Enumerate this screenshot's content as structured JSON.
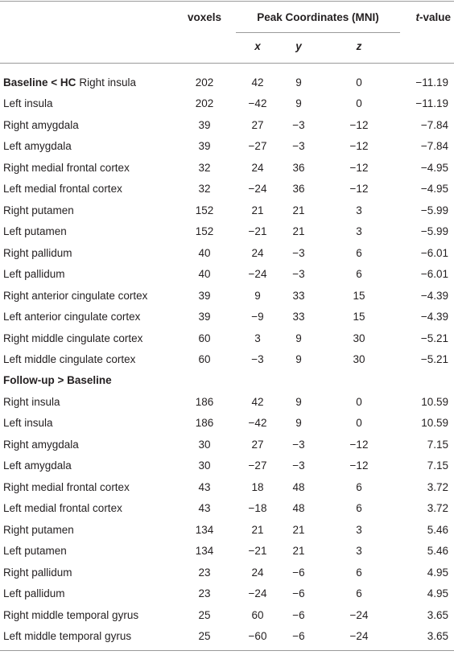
{
  "header": {
    "voxels": "voxels",
    "peak": "Peak Coordinates (MNI)",
    "x": "x",
    "y": "y",
    "z": "z",
    "t_value": {
      "italic": "t",
      "rest": "-value"
    }
  },
  "table": {
    "rows": [
      {
        "group": "Baseline < HC",
        "label": "Right insula",
        "cells": [
          "202",
          "42",
          "9",
          "0",
          "−11.19"
        ]
      },
      {
        "label": "Left insula",
        "cells": [
          "202",
          "−42",
          "9",
          "0",
          "−11.19"
        ]
      },
      {
        "label": "Right amygdala",
        "cells": [
          "39",
          "27",
          "−3",
          "−12",
          "−7.84"
        ]
      },
      {
        "label": "Left amygdala",
        "cells": [
          "39",
          "−27",
          "−3",
          "−12",
          "−7.84"
        ]
      },
      {
        "label": "Right medial frontal cortex",
        "cells": [
          "32",
          "24",
          "36",
          "−12",
          "−4.95"
        ]
      },
      {
        "label": "Left medial frontal cortex",
        "cells": [
          "32",
          "−24",
          "36",
          "−12",
          "−4.95"
        ]
      },
      {
        "label": "Right putamen",
        "cells": [
          "152",
          "21",
          "21",
          "3",
          "−5.99"
        ]
      },
      {
        "label": "Left putamen",
        "cells": [
          "152",
          "−21",
          "21",
          "3",
          "−5.99"
        ]
      },
      {
        "label": "Right pallidum",
        "cells": [
          "40",
          "24",
          "−3",
          "6",
          "−6.01"
        ]
      },
      {
        "label": "Left pallidum",
        "cells": [
          "40",
          "−24",
          "−3",
          "6",
          "−6.01"
        ]
      },
      {
        "label": "Right anterior cingulate cortex",
        "cells": [
          "39",
          "9",
          "33",
          "15",
          "−4.39"
        ]
      },
      {
        "label": "Left anterior cingulate cortex",
        "cells": [
          "39",
          "−9",
          "33",
          "15",
          "−4.39"
        ]
      },
      {
        "label": "Right middle cingulate cortex",
        "cells": [
          "60",
          "3",
          "9",
          "30",
          "−5.21"
        ]
      },
      {
        "label": "Left middle cingulate cortex",
        "cells": [
          "60",
          "−3",
          "9",
          "30",
          "−5.21"
        ]
      },
      {
        "group": "Follow-up > Baseline"
      },
      {
        "label": "Right insula",
        "cells": [
          "186",
          "42",
          "9",
          "0",
          "10.59"
        ]
      },
      {
        "label": "Left insula",
        "cells": [
          "186",
          "−42",
          "9",
          "0",
          "10.59"
        ]
      },
      {
        "label": "Right amygdala",
        "cells": [
          "30",
          "27",
          "−3",
          "−12",
          "7.15"
        ]
      },
      {
        "label": "Left amygdala",
        "cells": [
          "30",
          "−27",
          "−3",
          "−12",
          "7.15"
        ]
      },
      {
        "label": "Right medial frontal cortex",
        "cells": [
          "43",
          "18",
          "48",
          "6",
          "3.72"
        ]
      },
      {
        "label": "Left medial frontal cortex",
        "cells": [
          "43",
          "−18",
          "48",
          "6",
          "3.72"
        ]
      },
      {
        "label": "Right putamen",
        "cells": [
          "134",
          "21",
          "21",
          "3",
          "5.46"
        ]
      },
      {
        "label": "Left putamen",
        "cells": [
          "134",
          "−21",
          "21",
          "3",
          "5.46"
        ]
      },
      {
        "label": "Right pallidum",
        "cells": [
          "23",
          "24",
          "−6",
          "6",
          "4.95"
        ]
      },
      {
        "label": "Left pallidum",
        "cells": [
          "23",
          "−24",
          "−6",
          "6",
          "4.95"
        ]
      },
      {
        "label": "Right middle temporal gyrus",
        "cells": [
          "25",
          "60",
          "−6",
          "−24",
          "3.65"
        ]
      },
      {
        "label": "Left middle temporal gyrus",
        "cells": [
          "25",
          "−60",
          "−6",
          "−24",
          "3.65"
        ]
      }
    ]
  }
}
